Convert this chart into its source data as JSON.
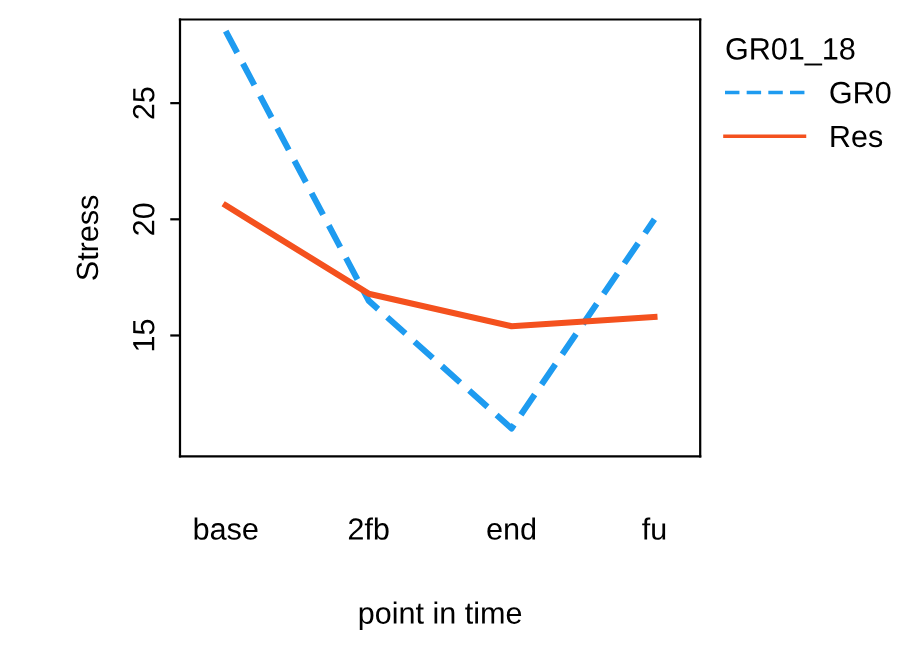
{
  "chart_data": {
    "type": "line",
    "xlabel": "point in time",
    "ylabel": "Stress",
    "legend_title": "GR01_18",
    "legend": "right",
    "categories": [
      "base",
      "2fb",
      "end",
      "fu"
    ],
    "ylim": [
      9.8,
      28.6
    ],
    "yticks": [
      15,
      20,
      25
    ],
    "grid": false,
    "marker": "none",
    "series": [
      {
        "name": "GR0",
        "color": "#1e9bf0",
        "line_style": "dashed",
        "values": [
          28.1,
          16.5,
          11.0,
          20.0
        ]
      },
      {
        "name": "Res",
        "color": "#f4511e",
        "line_style": "solid",
        "values": [
          20.6,
          16.8,
          15.4,
          15.8
        ]
      }
    ]
  }
}
